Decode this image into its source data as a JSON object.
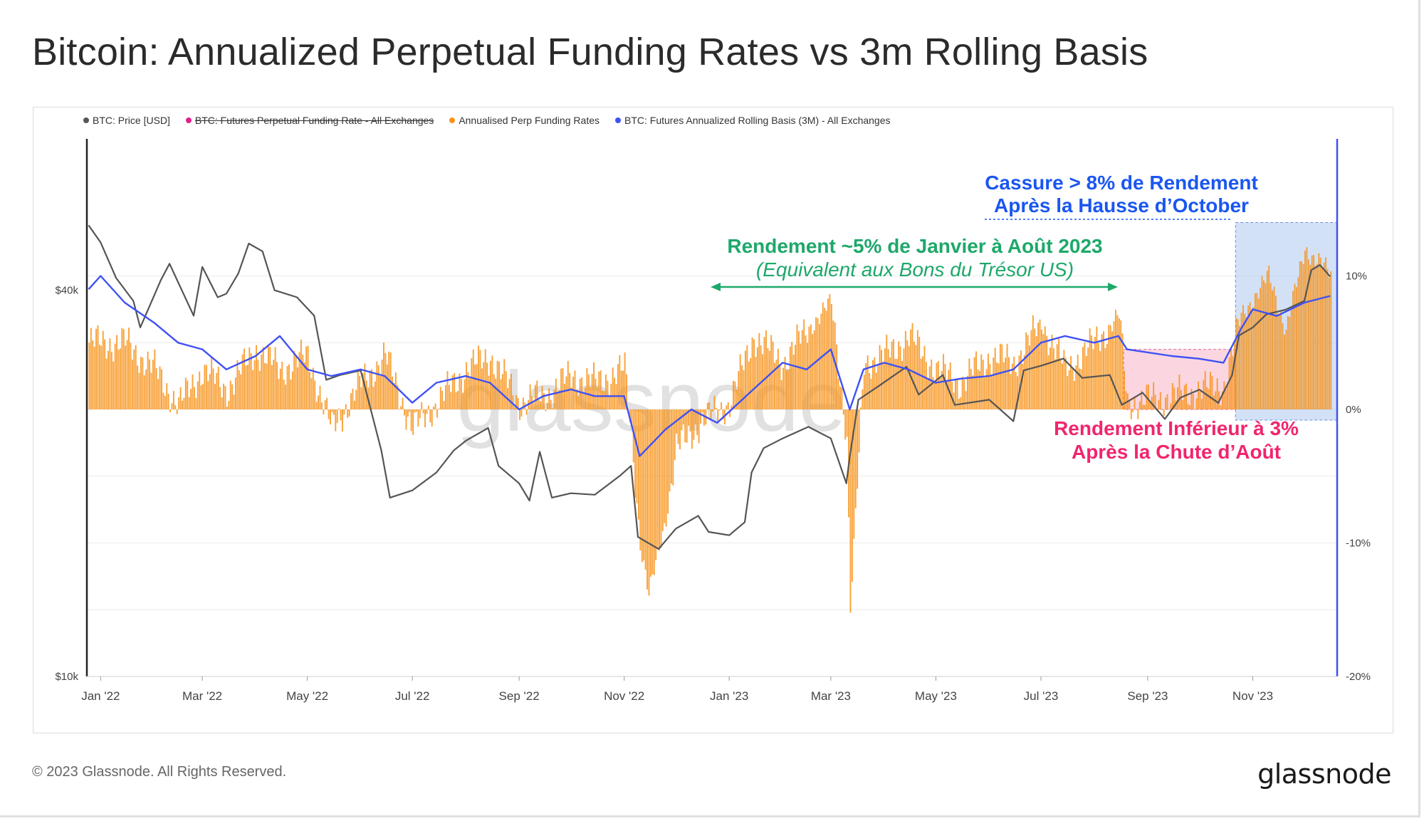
{
  "title": "Bitcoin: Annualized Perpetual Funding Rates vs 3m Rolling Basis",
  "legend": [
    {
      "label": "BTC: Price [USD]",
      "color": "#555555",
      "struck": false
    },
    {
      "label": "BTC: Futures Perpetual Funding Rate - All Exchanges",
      "color": "#e0218a",
      "struck": true
    },
    {
      "label": "Annualised Perp Funding Rates",
      "color": "#f7931a",
      "struck": false
    },
    {
      "label": "BTC: Futures Annualized Rolling Basis (3M) - All Exchanges",
      "color": "#3f51f5",
      "struck": false
    }
  ],
  "footer": {
    "copyright": "© 2023 Glassnode. All Rights Reserved.",
    "logo": "glassnode"
  },
  "watermark": "glassnode",
  "annotations": {
    "top_right_line1": "Cassure > 8% de Rendement",
    "top_right_line2": "Après la Hausse d’October",
    "middle_line1": "Rendement ~5% de Janvier à Août 2023",
    "middle_line2": "(Equivalent aux Bons du Trésor US)",
    "lower_right_line1": "Rendement Inférieur à 3%",
    "lower_right_line2": "Après la Chute d’Août"
  },
  "chart_data": {
    "type": "line",
    "title": "Bitcoin: Annualized Perpetual Funding Rates vs 3m Rolling Basis",
    "x_ticks": [
      "Jan '22",
      "Mar '22",
      "May '22",
      "Jul '22",
      "Sep '22",
      "Nov '22",
      "Jan '23",
      "Mar '23",
      "May '23",
      "Jul '23",
      "Sep '23",
      "Nov '23"
    ],
    "x_range": [
      "2021-12-24",
      "2023-12-20"
    ],
    "y_left": {
      "scale": "log",
      "ticks": [
        "$40k",
        "$10k"
      ],
      "range_usd": [
        10000,
        68000
      ]
    },
    "y_right": {
      "ticks": [
        "10%",
        "0%",
        "-10%",
        "-20%"
      ],
      "range_pct": [
        -20,
        20
      ]
    },
    "colors": {
      "price": "#555555",
      "funding": "#f7931a",
      "basis": "#3f51f5"
    },
    "series": [
      {
        "name": "BTC: Price [USD]",
        "axis": "left",
        "points": [
          [
            "2021-12-25",
            50500
          ],
          [
            "2022-01-01",
            47500
          ],
          [
            "2022-01-10",
            41800
          ],
          [
            "2022-01-20",
            38500
          ],
          [
            "2022-01-24",
            35000
          ],
          [
            "2022-02-05",
            41500
          ],
          [
            "2022-02-10",
            44000
          ],
          [
            "2022-02-20",
            38500
          ],
          [
            "2022-02-24",
            36500
          ],
          [
            "2022-03-01",
            43500
          ],
          [
            "2022-03-10",
            39000
          ],
          [
            "2022-03-15",
            39500
          ],
          [
            "2022-03-22",
            42500
          ],
          [
            "2022-03-28",
            47300
          ],
          [
            "2022-04-05",
            46000
          ],
          [
            "2022-04-12",
            40000
          ],
          [
            "2022-04-25",
            39000
          ],
          [
            "2022-05-05",
            36500
          ],
          [
            "2022-05-12",
            29000
          ],
          [
            "2022-05-20",
            29500
          ],
          [
            "2022-06-01",
            30000
          ],
          [
            "2022-06-13",
            22500
          ],
          [
            "2022-06-18",
            19000
          ],
          [
            "2022-07-01",
            19500
          ],
          [
            "2022-07-15",
            20800
          ],
          [
            "2022-07-25",
            22500
          ],
          [
            "2022-08-01",
            23300
          ],
          [
            "2022-08-14",
            24400
          ],
          [
            "2022-08-20",
            21300
          ],
          [
            "2022-09-01",
            20000
          ],
          [
            "2022-09-07",
            18800
          ],
          [
            "2022-09-13",
            22400
          ],
          [
            "2022-09-20",
            19000
          ],
          [
            "2022-10-01",
            19300
          ],
          [
            "2022-10-15",
            19200
          ],
          [
            "2022-10-30",
            20600
          ],
          [
            "2022-11-05",
            21300
          ],
          [
            "2022-11-09",
            16500
          ],
          [
            "2022-11-21",
            15800
          ],
          [
            "2022-12-01",
            17000
          ],
          [
            "2022-12-14",
            17800
          ],
          [
            "2022-12-20",
            16800
          ],
          [
            "2023-01-01",
            16600
          ],
          [
            "2023-01-10",
            17400
          ],
          [
            "2023-01-14",
            20800
          ],
          [
            "2023-01-21",
            22700
          ],
          [
            "2023-02-01",
            23500
          ],
          [
            "2023-02-16",
            24500
          ],
          [
            "2023-03-01",
            23500
          ],
          [
            "2023-03-10",
            20000
          ],
          [
            "2023-03-12",
            22000
          ],
          [
            "2023-03-17",
            27000
          ],
          [
            "2023-03-30",
            28500
          ],
          [
            "2023-04-14",
            30400
          ],
          [
            "2023-04-21",
            27500
          ],
          [
            "2023-05-05",
            29500
          ],
          [
            "2023-05-12",
            26500
          ],
          [
            "2023-06-01",
            27000
          ],
          [
            "2023-06-15",
            25000
          ],
          [
            "2023-06-21",
            30000
          ],
          [
            "2023-07-01",
            30500
          ],
          [
            "2023-07-14",
            31300
          ],
          [
            "2023-07-25",
            29200
          ],
          [
            "2023-08-10",
            29500
          ],
          [
            "2023-08-17",
            26500
          ],
          [
            "2023-08-29",
            27700
          ],
          [
            "2023-09-11",
            25200
          ],
          [
            "2023-09-20",
            27200
          ],
          [
            "2023-10-01",
            28000
          ],
          [
            "2023-10-12",
            26700
          ],
          [
            "2023-10-20",
            29500
          ],
          [
            "2023-10-24",
            34000
          ],
          [
            "2023-11-01",
            35000
          ],
          [
            "2023-11-09",
            36700
          ],
          [
            "2023-11-20",
            37300
          ],
          [
            "2023-12-01",
            38500
          ],
          [
            "2023-12-05",
            43000
          ],
          [
            "2023-12-10",
            43800
          ],
          [
            "2023-12-16",
            42000
          ]
        ]
      },
      {
        "name": "Annualised Perp Funding Rates",
        "axis": "right",
        "points": [
          [
            "2021-12-25",
            5
          ],
          [
            "2022-01-15",
            5
          ],
          [
            "2022-02-01",
            3
          ],
          [
            "2022-02-15",
            0.3
          ],
          [
            "2022-03-01",
            3
          ],
          [
            "2022-03-15",
            1.5
          ],
          [
            "2022-04-01",
            4.5
          ],
          [
            "2022-04-15",
            3
          ],
          [
            "2022-05-01",
            4
          ],
          [
            "2022-05-15",
            -1.5
          ],
          [
            "2022-06-01",
            2
          ],
          [
            "2022-06-15",
            4
          ],
          [
            "2022-07-01",
            -1.5
          ],
          [
            "2022-07-15",
            0.5
          ],
          [
            "2022-08-01",
            3
          ],
          [
            "2022-08-15",
            4
          ],
          [
            "2022-09-01",
            0.5
          ],
          [
            "2022-09-15",
            1
          ],
          [
            "2022-10-01",
            2.5
          ],
          [
            "2022-10-15",
            2
          ],
          [
            "2022-11-01",
            3
          ],
          [
            "2022-11-05",
            -2
          ],
          [
            "2022-11-10",
            -10
          ],
          [
            "2022-11-15",
            -14
          ],
          [
            "2022-11-25",
            -8
          ],
          [
            "2022-12-01",
            -3
          ],
          [
            "2022-12-15",
            -1
          ],
          [
            "2023-01-01",
            0.5
          ],
          [
            "2023-01-15",
            5.5
          ],
          [
            "2023-02-01",
            3.5
          ],
          [
            "2023-02-15",
            6
          ],
          [
            "2023-03-01",
            8
          ],
          [
            "2023-03-10",
            -2
          ],
          [
            "2023-03-12",
            -15
          ],
          [
            "2023-03-20",
            3.5
          ],
          [
            "2023-04-01",
            4
          ],
          [
            "2023-04-15",
            5.5
          ],
          [
            "2023-05-01",
            3
          ],
          [
            "2023-05-15",
            2
          ],
          [
            "2023-06-01",
            4
          ],
          [
            "2023-06-15",
            3.5
          ],
          [
            "2023-07-01",
            6.5
          ],
          [
            "2023-07-15",
            3
          ],
          [
            "2023-08-01",
            5
          ],
          [
            "2023-08-15",
            7
          ],
          [
            "2023-08-20",
            0.5
          ],
          [
            "2023-09-15",
            1
          ],
          [
            "2023-10-01",
            1.5
          ],
          [
            "2023-10-15",
            1.8
          ],
          [
            "2023-10-25",
            7
          ],
          [
            "2023-11-10",
            10
          ],
          [
            "2023-11-20",
            6
          ],
          [
            "2023-12-01",
            12
          ],
          [
            "2023-12-10",
            11
          ],
          [
            "2023-12-16",
            10
          ]
        ]
      },
      {
        "name": "BTC: Futures Annualized Rolling Basis (3M) - All Exchanges",
        "axis": "right",
        "points": [
          [
            "2021-12-25",
            9
          ],
          [
            "2022-01-01",
            10
          ],
          [
            "2022-01-15",
            8
          ],
          [
            "2022-02-01",
            6.5
          ],
          [
            "2022-02-15",
            5
          ],
          [
            "2022-03-01",
            4.5
          ],
          [
            "2022-03-15",
            3
          ],
          [
            "2022-04-01",
            4
          ],
          [
            "2022-04-15",
            5.5
          ],
          [
            "2022-05-01",
            3
          ],
          [
            "2022-05-15",
            2.5
          ],
          [
            "2022-06-01",
            3
          ],
          [
            "2022-06-15",
            2.5
          ],
          [
            "2022-07-01",
            0.5
          ],
          [
            "2022-07-15",
            2
          ],
          [
            "2022-08-01",
            2.5
          ],
          [
            "2022-08-15",
            2
          ],
          [
            "2022-09-01",
            0
          ],
          [
            "2022-09-15",
            1
          ],
          [
            "2022-10-01",
            1.5
          ],
          [
            "2022-10-15",
            1
          ],
          [
            "2022-11-01",
            1
          ],
          [
            "2022-11-10",
            -3.5
          ],
          [
            "2022-11-25",
            -1.5
          ],
          [
            "2022-12-10",
            0
          ],
          [
            "2022-12-25",
            -1
          ],
          [
            "2023-01-15",
            1.5
          ],
          [
            "2023-02-01",
            3.5
          ],
          [
            "2023-02-15",
            3
          ],
          [
            "2023-03-01",
            4.5
          ],
          [
            "2023-03-12",
            0
          ],
          [
            "2023-03-20",
            3
          ],
          [
            "2023-04-01",
            3.5
          ],
          [
            "2023-04-15",
            3
          ],
          [
            "2023-05-01",
            2
          ],
          [
            "2023-05-15",
            2.3
          ],
          [
            "2023-06-01",
            2.5
          ],
          [
            "2023-06-15",
            3
          ],
          [
            "2023-07-01",
            5
          ],
          [
            "2023-07-15",
            5.5
          ],
          [
            "2023-08-01",
            5
          ],
          [
            "2023-08-15",
            5.5
          ],
          [
            "2023-08-20",
            4.5
          ],
          [
            "2023-09-15",
            4
          ],
          [
            "2023-10-01",
            3.8
          ],
          [
            "2023-10-15",
            3.5
          ],
          [
            "2023-10-25",
            6
          ],
          [
            "2023-11-01",
            7.5
          ],
          [
            "2023-11-15",
            7
          ],
          [
            "2023-12-01",
            8
          ],
          [
            "2023-12-16",
            8.5
          ]
        ]
      }
    ]
  }
}
